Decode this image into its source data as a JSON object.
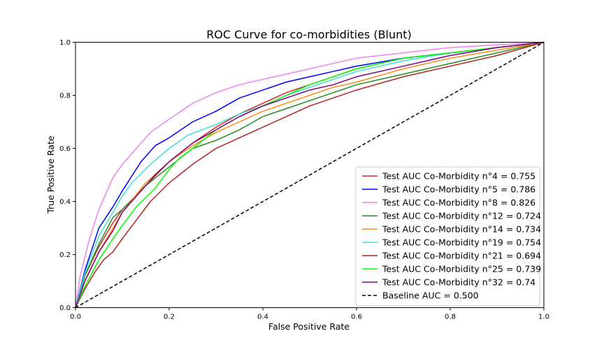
{
  "chart_data": {
    "type": "line",
    "title": "ROC Curve for co-morbidities (Blunt)",
    "xlabel": "False Positive Rate",
    "ylabel": "True Positive Rate",
    "xlim": [
      0,
      1
    ],
    "ylim": [
      0,
      1
    ],
    "xticks": [
      "0.0",
      "0.2",
      "0.4",
      "0.6",
      "0.8",
      "1.0"
    ],
    "yticks": [
      "0.0",
      "0.2",
      "0.4",
      "0.6",
      "0.8",
      "1.0"
    ],
    "grid": false,
    "legend_position": "lower-right",
    "series": [
      {
        "name": "Test AUC Co-Morbidity n°4 = 0.755",
        "color": "#d62728",
        "x": [
          0,
          0.02,
          0.05,
          0.08,
          0.1,
          0.15,
          0.2,
          0.25,
          0.3,
          0.35,
          0.4,
          0.45,
          0.5,
          0.55,
          0.6,
          0.65,
          0.7,
          0.8,
          0.9,
          1.0
        ],
        "y": [
          0,
          0.12,
          0.23,
          0.32,
          0.37,
          0.46,
          0.55,
          0.62,
          0.68,
          0.73,
          0.77,
          0.81,
          0.84,
          0.87,
          0.9,
          0.92,
          0.94,
          0.96,
          0.98,
          1.0
        ]
      },
      {
        "name": "Test AUC Co-Morbidity n°5 = 0.786",
        "color": "#0000ff",
        "x": [
          0,
          0.02,
          0.05,
          0.08,
          0.1,
          0.14,
          0.17,
          0.2,
          0.25,
          0.3,
          0.35,
          0.4,
          0.45,
          0.5,
          0.55,
          0.6,
          0.7,
          0.8,
          0.9,
          1.0
        ],
        "y": [
          0,
          0.14,
          0.3,
          0.38,
          0.44,
          0.55,
          0.61,
          0.64,
          0.7,
          0.74,
          0.79,
          0.82,
          0.85,
          0.87,
          0.89,
          0.91,
          0.94,
          0.96,
          0.98,
          1.0
        ]
      },
      {
        "name": "Test AUC Co-Morbidity n°8 = 0.826",
        "color": "#ee82ee",
        "x": [
          0,
          0.01,
          0.03,
          0.05,
          0.08,
          0.1,
          0.13,
          0.16,
          0.2,
          0.25,
          0.3,
          0.35,
          0.4,
          0.45,
          0.5,
          0.6,
          0.7,
          0.8,
          0.9,
          1.0
        ],
        "y": [
          0,
          0.12,
          0.26,
          0.37,
          0.49,
          0.54,
          0.6,
          0.66,
          0.71,
          0.77,
          0.81,
          0.84,
          0.86,
          0.88,
          0.9,
          0.94,
          0.96,
          0.98,
          0.99,
          1.0
        ]
      },
      {
        "name": "Test AUC Co-Morbidity n°12 = 0.724",
        "color": "#228b22",
        "x": [
          0,
          0.02,
          0.05,
          0.08,
          0.1,
          0.15,
          0.2,
          0.25,
          0.3,
          0.35,
          0.4,
          0.45,
          0.5,
          0.55,
          0.6,
          0.7,
          0.8,
          0.9,
          1.0
        ],
        "y": [
          0,
          0.12,
          0.24,
          0.34,
          0.37,
          0.46,
          0.53,
          0.6,
          0.63,
          0.67,
          0.72,
          0.75,
          0.78,
          0.81,
          0.84,
          0.88,
          0.92,
          0.96,
          1.0
        ]
      },
      {
        "name": "Test AUC Co-Morbidity n°14 = 0.734",
        "color": "#ff8c1a",
        "x": [
          0,
          0.02,
          0.05,
          0.08,
          0.1,
          0.15,
          0.2,
          0.25,
          0.3,
          0.35,
          0.4,
          0.45,
          0.5,
          0.55,
          0.6,
          0.7,
          0.8,
          0.9,
          1.0
        ],
        "y": [
          0,
          0.1,
          0.21,
          0.3,
          0.36,
          0.47,
          0.55,
          0.61,
          0.66,
          0.7,
          0.74,
          0.77,
          0.8,
          0.83,
          0.85,
          0.9,
          0.94,
          0.97,
          1.0
        ]
      },
      {
        "name": "Test AUC Co-Morbidity n°19 = 0.754",
        "color": "#40e0d0",
        "x": [
          0,
          0.02,
          0.05,
          0.08,
          0.1,
          0.12,
          0.16,
          0.2,
          0.24,
          0.3,
          0.35,
          0.4,
          0.45,
          0.5,
          0.55,
          0.6,
          0.7,
          0.8,
          0.9,
          1.0
        ],
        "y": [
          0,
          0.13,
          0.27,
          0.36,
          0.42,
          0.47,
          0.54,
          0.6,
          0.65,
          0.69,
          0.73,
          0.76,
          0.8,
          0.83,
          0.86,
          0.89,
          0.93,
          0.96,
          0.98,
          1.0
        ]
      },
      {
        "name": "Test AUC Co-Morbidity n°21 = 0.694",
        "color": "#b22222",
        "x": [
          0,
          0.02,
          0.04,
          0.06,
          0.08,
          0.1,
          0.13,
          0.16,
          0.2,
          0.25,
          0.3,
          0.35,
          0.4,
          0.45,
          0.5,
          0.6,
          0.7,
          0.8,
          0.9,
          1.0
        ],
        "y": [
          0,
          0.07,
          0.13,
          0.18,
          0.21,
          0.26,
          0.33,
          0.4,
          0.47,
          0.54,
          0.6,
          0.64,
          0.68,
          0.72,
          0.76,
          0.82,
          0.87,
          0.91,
          0.95,
          1.0
        ]
      },
      {
        "name": "Test AUC Co-Morbidity n°25 = 0.739",
        "color": "#00ff00",
        "x": [
          0,
          0.02,
          0.05,
          0.08,
          0.1,
          0.13,
          0.17,
          0.2,
          0.22,
          0.25,
          0.3,
          0.35,
          0.4,
          0.45,
          0.5,
          0.55,
          0.6,
          0.7,
          0.8,
          0.9,
          1.0
        ],
        "y": [
          0,
          0.08,
          0.18,
          0.26,
          0.31,
          0.38,
          0.45,
          0.52,
          0.56,
          0.6,
          0.67,
          0.72,
          0.76,
          0.8,
          0.84,
          0.87,
          0.9,
          0.94,
          0.96,
          0.98,
          1.0
        ]
      },
      {
        "name": "Test AUC Co-Morbidity n°32 = 0.74",
        "color": "#800080",
        "x": [
          0,
          0.02,
          0.05,
          0.08,
          0.1,
          0.13,
          0.17,
          0.2,
          0.25,
          0.3,
          0.35,
          0.4,
          0.45,
          0.5,
          0.55,
          0.6,
          0.7,
          0.8,
          0.9,
          1.0
        ],
        "y": [
          0,
          0.1,
          0.21,
          0.29,
          0.36,
          0.42,
          0.5,
          0.55,
          0.62,
          0.67,
          0.72,
          0.76,
          0.79,
          0.82,
          0.84,
          0.87,
          0.91,
          0.95,
          0.98,
          1.0
        ]
      },
      {
        "name": "Baseline AUC = 0.500",
        "color": "#000000",
        "dashed": true,
        "x": [
          0,
          1
        ],
        "y": [
          0,
          1
        ]
      }
    ]
  }
}
